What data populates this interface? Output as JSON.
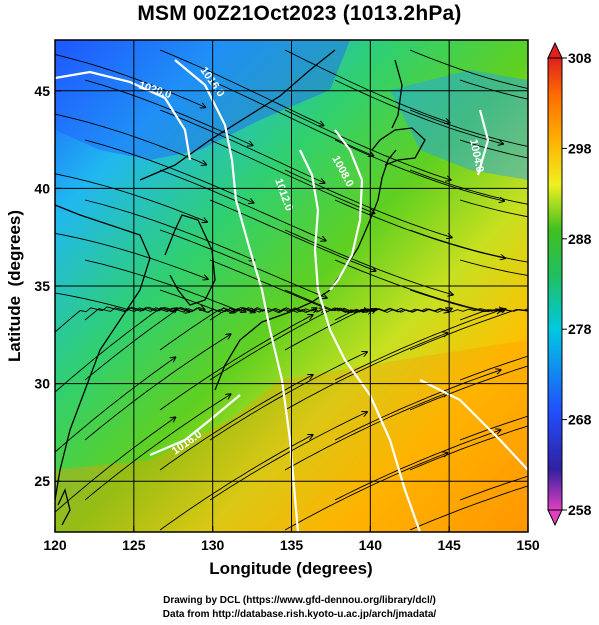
{
  "title": "MSM 00Z21Oct2023 (1013.2hPa)",
  "map": {
    "xlabel": "Longitude (degrees)",
    "ylabel": "Latitude  (degrees)",
    "x_ticks": [
      "120",
      "125",
      "130",
      "135",
      "140",
      "145",
      "150"
    ],
    "y_ticks": [
      "25",
      "30",
      "35",
      "40",
      "45"
    ],
    "lon_range": [
      120,
      150
    ],
    "lat_range": [
      22.4,
      47.6
    ],
    "isobar_labels": [
      "1020.0",
      "1016.0",
      "1012.0",
      "1008.0",
      "1004.0",
      "1016.0"
    ]
  },
  "colorbar": {
    "ticks": [
      "308",
      "298",
      "288",
      "278",
      "268",
      "258"
    ],
    "min": 258,
    "max": 308,
    "colors": [
      "#e040c0",
      "#2020c0",
      "#2050ff",
      "#00c8e0",
      "#20c060",
      "#40c020",
      "#f0f020",
      "#ffb000",
      "#ff6a00",
      "#e02020"
    ]
  },
  "credits": {
    "line1": "Drawing by DCL (https://www.gfd-dennou.org/library/dcl/)",
    "line2": "Data from http://database.rish.kyoto-u.ac.jp/arch/jmadata/"
  }
}
